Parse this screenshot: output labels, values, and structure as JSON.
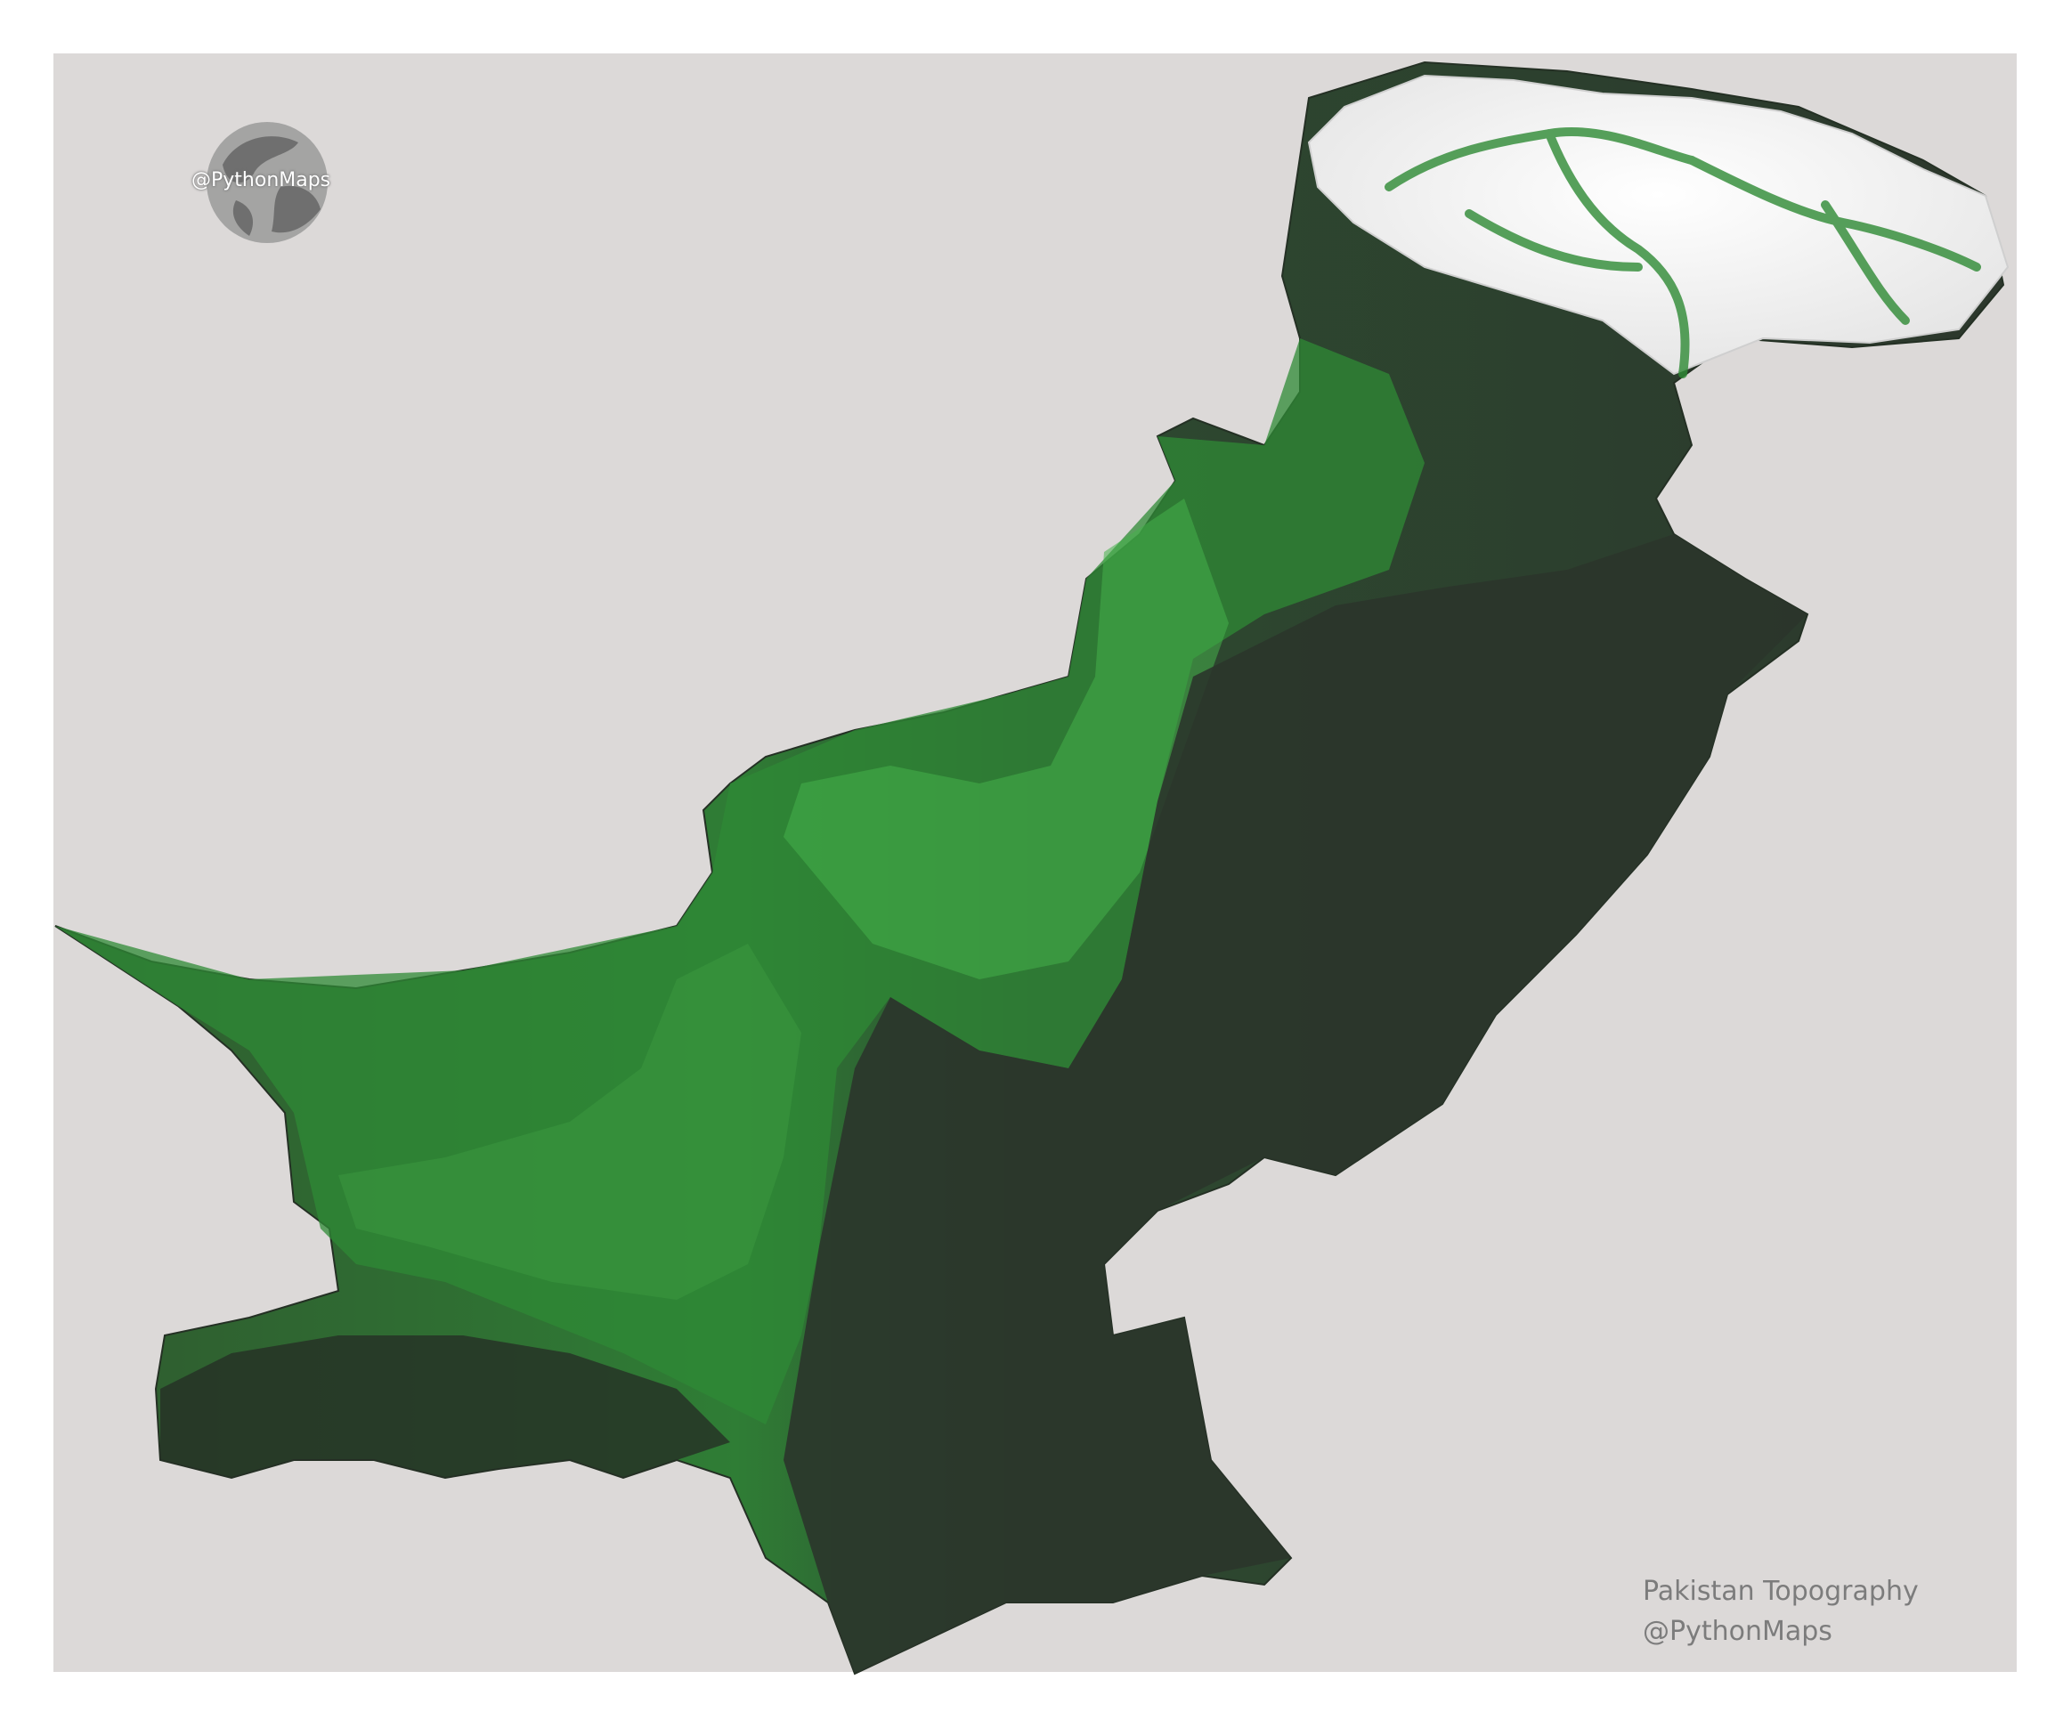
{
  "map": {
    "title": "Pakistan Topography",
    "credit": "@PythonMaps",
    "logo_text": "@PythonMaps",
    "colors": {
      "background": "#dcd9d8",
      "lowland": "#2d3a2d",
      "midland": "#2f7a34",
      "highland": "#3aa63f",
      "snow": "#f1f1f1",
      "caption": "#7c7c7c"
    }
  }
}
